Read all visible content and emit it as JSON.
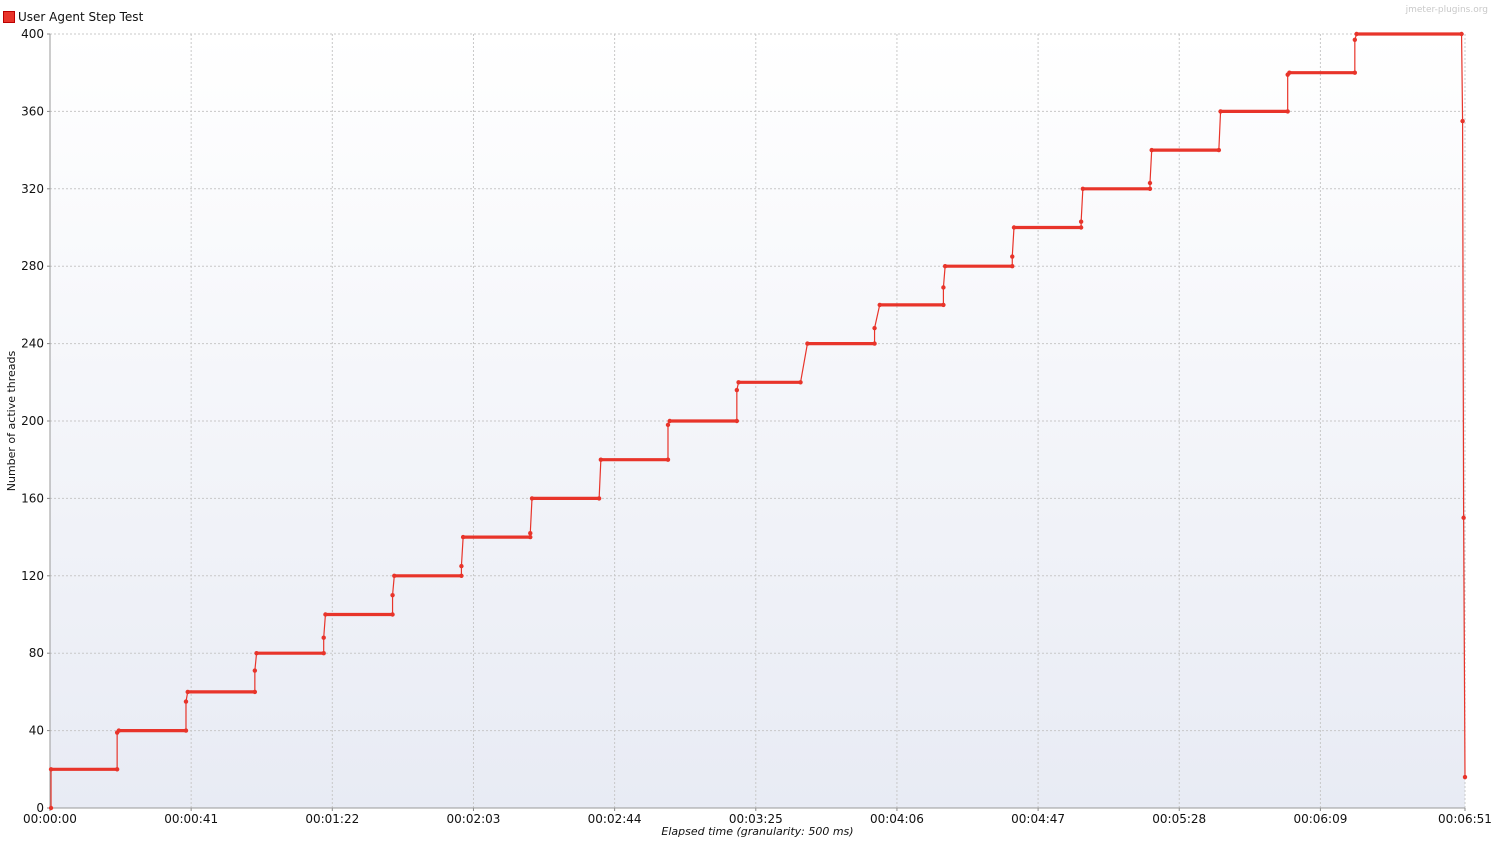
{
  "legend": {
    "label": "User Agent Step Test",
    "color": "#e8342a"
  },
  "watermark": "jmeter-plugins.org",
  "chart_data": {
    "type": "line",
    "title": "",
    "xlabel": "Elapsed time (granularity: 500 ms)",
    "ylabel": "Number of active threads",
    "xlim": [
      0,
      411
    ],
    "ylim": [
      0,
      400
    ],
    "y_ticks": [
      0,
      40,
      80,
      120,
      160,
      200,
      240,
      280,
      320,
      360,
      400
    ],
    "x_ticks": [
      {
        "value": 0,
        "label": "00:00:00"
      },
      {
        "value": 41,
        "label": "00:00:41"
      },
      {
        "value": 82,
        "label": "00:01:22"
      },
      {
        "value": 123,
        "label": "00:02:03"
      },
      {
        "value": 164,
        "label": "00:02:44"
      },
      {
        "value": 205,
        "label": "00:03:25"
      },
      {
        "value": 246,
        "label": "00:04:06"
      },
      {
        "value": 287,
        "label": "00:04:47"
      },
      {
        "value": 328,
        "label": "00:05:28"
      },
      {
        "value": 369,
        "label": "00:06:09"
      },
      {
        "value": 411,
        "label": "00:06:51"
      }
    ],
    "grid": true,
    "legend_position": "top-left",
    "colors": {
      "series": "#e8342a",
      "grid": "#c8c8c8",
      "background_top": "#ffffff",
      "background_bottom": "#e8ebf4"
    },
    "series": [
      {
        "name": "User Agent Step Test",
        "points": [
          [
            0.3,
            0
          ],
          [
            0.3,
            20
          ],
          [
            19.5,
            20
          ],
          [
            19.5,
            39
          ],
          [
            20,
            40
          ],
          [
            39.5,
            40
          ],
          [
            39.5,
            55
          ],
          [
            40,
            60
          ],
          [
            59.5,
            60
          ],
          [
            59.5,
            71
          ],
          [
            60,
            80
          ],
          [
            79.5,
            80
          ],
          [
            79.5,
            88
          ],
          [
            80,
            100
          ],
          [
            99.5,
            100
          ],
          [
            99.5,
            110
          ],
          [
            100,
            120
          ],
          [
            119.5,
            120
          ],
          [
            119.5,
            125
          ],
          [
            120,
            140
          ],
          [
            139.5,
            140
          ],
          [
            139.5,
            142
          ],
          [
            140,
            160
          ],
          [
            159.5,
            160
          ],
          [
            160,
            180
          ],
          [
            179.5,
            180
          ],
          [
            179.5,
            198
          ],
          [
            180,
            200
          ],
          [
            199.5,
            200
          ],
          [
            199.5,
            216
          ],
          [
            200,
            220
          ],
          [
            218,
            220
          ],
          [
            220,
            240
          ],
          [
            239.5,
            240
          ],
          [
            239.5,
            248
          ],
          [
            241,
            260
          ],
          [
            259.5,
            260
          ],
          [
            259.5,
            269
          ],
          [
            260,
            280
          ],
          [
            279.5,
            280
          ],
          [
            279.5,
            285
          ],
          [
            280,
            300
          ],
          [
            299.5,
            300
          ],
          [
            299.5,
            303
          ],
          [
            300,
            320
          ],
          [
            319.5,
            320
          ],
          [
            319.5,
            323
          ],
          [
            320,
            340
          ],
          [
            339.5,
            340
          ],
          [
            340,
            360
          ],
          [
            359.5,
            360
          ],
          [
            359.5,
            379
          ],
          [
            360,
            380
          ],
          [
            379,
            380
          ],
          [
            379,
            397
          ],
          [
            379.5,
            400
          ],
          [
            410,
            400
          ],
          [
            410.3,
            355
          ],
          [
            410.6,
            150
          ],
          [
            411,
            16
          ]
        ]
      }
    ]
  }
}
